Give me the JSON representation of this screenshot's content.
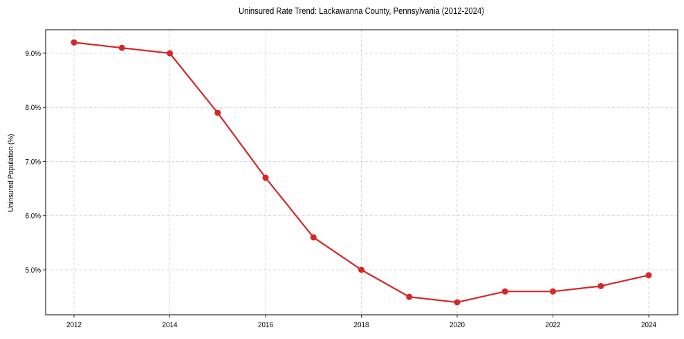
{
  "chart_data": {
    "type": "line",
    "title": "Uninsured Rate Trend: Lackawanna County, Pennsylvania (2012-2024)",
    "xlabel": "",
    "ylabel": "Uninsured Population (%)",
    "x": [
      2012,
      2013,
      2014,
      2015,
      2016,
      2017,
      2018,
      2019,
      2020,
      2021,
      2022,
      2023,
      2024
    ],
    "series": [
      {
        "name": "Uninsured Rate",
        "values": [
          9.2,
          9.1,
          9.0,
          7.9,
          6.7,
          5.6,
          5.0,
          4.5,
          4.4,
          4.6,
          4.6,
          4.7,
          4.9
        ],
        "color": "#d62728",
        "marker": "circle"
      }
    ],
    "xticks": [
      2012,
      2014,
      2016,
      2018,
      2020,
      2022,
      2024
    ],
    "yticks": [
      "5.0%",
      "6.0%",
      "7.0%",
      "8.0%",
      "9.0%"
    ],
    "ylim": [
      4.16,
      9.44
    ],
    "xlim": [
      2011.4,
      2024.6
    ],
    "grid": true,
    "legend": null
  }
}
